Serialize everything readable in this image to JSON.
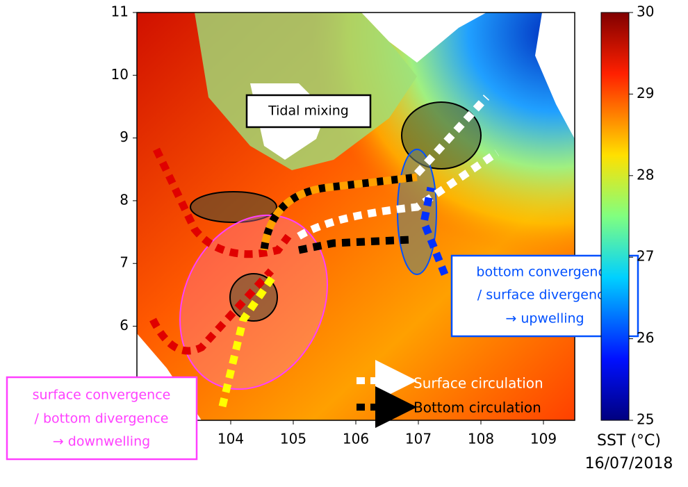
{
  "map": {
    "x_axis": {
      "xlim": [
        102.5,
        109.5
      ],
      "ticks": [
        104,
        105,
        106,
        107,
        108,
        109
      ]
    },
    "y_axis": {
      "ylim": [
        4.5,
        11
      ],
      "ticks": [
        6,
        7,
        8,
        9,
        10,
        11
      ]
    },
    "colorbar": {
      "range": [
        25,
        30
      ],
      "ticks": [
        25,
        26,
        27,
        28,
        29,
        30
      ],
      "label": "SST (°C)",
      "date": "16/07/2018"
    },
    "annotations": {
      "tidal": "Tidal mixing",
      "upwelling": [
        "bottom convergence",
        "/ surface divergence",
        "→ upwelling"
      ],
      "downwelling": [
        "surface convergence",
        "/ bottom divergence",
        "→ downwelling"
      ]
    },
    "legend": {
      "surface": "Surface circulation",
      "bottom": "Bottom circulation"
    }
  }
}
